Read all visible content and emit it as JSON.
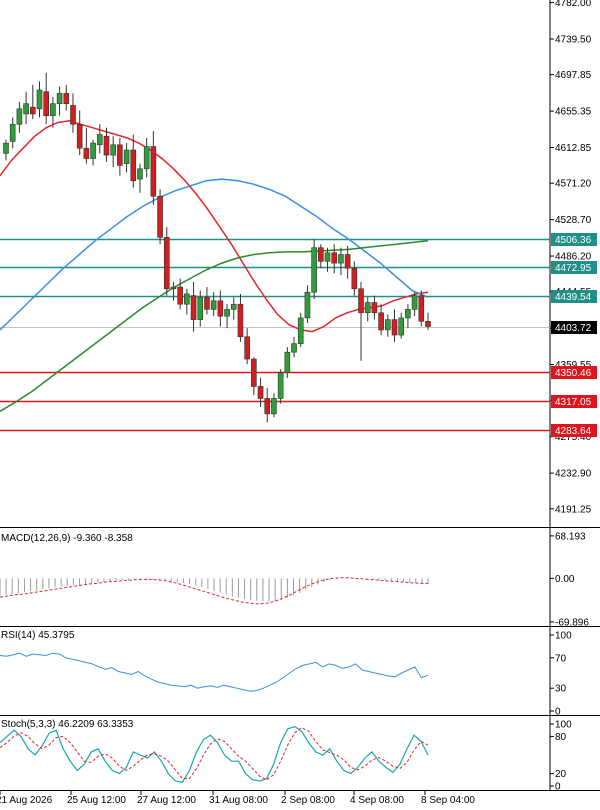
{
  "colors": {
    "bull": "#2e9d3a",
    "bear": "#d01f1f",
    "ma_fast": "#e3262a",
    "ma_mid": "#3b8fe0",
    "ma_slow": "#2a8a2a",
    "level_teal": "#1f8f88",
    "level_red": "#e0141c",
    "price_tag": "#000000"
  },
  "time_labels": [
    "21 Aug 2026",
    "25 Aug 12:00",
    "27 Aug 12:00",
    "31 Aug 08:00",
    "2 Sep 08:00",
    "4 Sep 08:00",
    "8 Sep 04:00"
  ],
  "chart_data": [
    {
      "type": "candlestick",
      "y_ticks": [
        4782.0,
        4739.5,
        4697.85,
        4655.35,
        4612.85,
        4571.2,
        4528.7,
        4486.2,
        4444.55,
        4402.05,
        4359.55,
        4317.9,
        4275.4,
        4232.9,
        4191.25
      ],
      "ylim": [
        4170,
        4785
      ],
      "current_price": 4403.72,
      "levels": [
        {
          "value": 4506.36,
          "label": "4506.36",
          "color": "teal"
        },
        {
          "value": 4472.95,
          "label": "4472.95",
          "color": "teal"
        },
        {
          "value": 4439.54,
          "label": "4439.54",
          "color": "teal"
        },
        {
          "value": 4350.46,
          "label": "4350.46",
          "color": "red"
        },
        {
          "value": 4317.05,
          "label": "4317.05",
          "color": "red"
        },
        {
          "value": 4283.64,
          "label": "4283.64",
          "color": "red"
        }
      ],
      "ohlc": [
        [
          4606,
          4622,
          4598,
          4618
        ],
        [
          4620,
          4648,
          4612,
          4640
        ],
        [
          4640,
          4666,
          4630,
          4658
        ],
        [
          4652,
          4678,
          4640,
          4664
        ],
        [
          4660,
          4686,
          4646,
          4652
        ],
        [
          4658,
          4690,
          4648,
          4680
        ],
        [
          4678,
          4700,
          4640,
          4650
        ],
        [
          4650,
          4672,
          4636,
          4664
        ],
        [
          4664,
          4684,
          4650,
          4676
        ],
        [
          4676,
          4686,
          4656,
          4664
        ],
        [
          4662,
          4676,
          4630,
          4640
        ],
        [
          4640,
          4656,
          4604,
          4612
        ],
        [
          4612,
          4636,
          4594,
          4600
        ],
        [
          4600,
          4622,
          4592,
          4618
        ],
        [
          4616,
          4640,
          4606,
          4628
        ],
        [
          4626,
          4636,
          4596,
          4604
        ],
        [
          4604,
          4626,
          4590,
          4616
        ],
        [
          4616,
          4624,
          4580,
          4592
        ],
        [
          4594,
          4618,
          4584,
          4610
        ],
        [
          4610,
          4628,
          4566,
          4574
        ],
        [
          4576,
          4594,
          4560,
          4588
        ],
        [
          4588,
          4624,
          4578,
          4614
        ],
        [
          4614,
          4632,
          4546,
          4556
        ],
        [
          4556,
          4564,
          4500,
          4508
        ],
        [
          4508,
          4520,
          4440,
          4448
        ],
        [
          4448,
          4456,
          4434,
          4450
        ],
        [
          4450,
          4460,
          4424,
          4430
        ],
        [
          4430,
          4448,
          4418,
          4442
        ],
        [
          4440,
          4456,
          4398,
          4412
        ],
        [
          4412,
          4446,
          4404,
          4438
        ],
        [
          4438,
          4450,
          4418,
          4424
        ],
        [
          4424,
          4444,
          4416,
          4434
        ],
        [
          4434,
          4446,
          4404,
          4416
        ],
        [
          4416,
          4430,
          4402,
          4424
        ],
        [
          4424,
          4438,
          4412,
          4430
        ],
        [
          4430,
          4442,
          4386,
          4392
        ],
        [
          4392,
          4402,
          4360,
          4366
        ],
        [
          4366,
          4368,
          4324,
          4334
        ],
        [
          4334,
          4344,
          4310,
          4320
        ],
        [
          4320,
          4332,
          4292,
          4302
        ],
        [
          4302,
          4326,
          4298,
          4320
        ],
        [
          4320,
          4354,
          4314,
          4350
        ],
        [
          4350,
          4380,
          4344,
          4374
        ],
        [
          4374,
          4392,
          4368,
          4384
        ],
        [
          4384,
          4420,
          4380,
          4414
        ],
        [
          4414,
          4452,
          4408,
          4444
        ],
        [
          4444,
          4506,
          4436,
          4496
        ],
        [
          4496,
          4500,
          4472,
          4480
        ],
        [
          4480,
          4496,
          4468,
          4490
        ],
        [
          4490,
          4500,
          4466,
          4478
        ],
        [
          4478,
          4496,
          4464,
          4488
        ],
        [
          4488,
          4498,
          4460,
          4472
        ],
        [
          4472,
          4480,
          4440,
          4448
        ],
        [
          4448,
          4456,
          4364,
          4420
        ],
        [
          4420,
          4438,
          4410,
          4432
        ],
        [
          4432,
          4440,
          4412,
          4420
        ],
        [
          4420,
          4430,
          4394,
          4400
        ],
        [
          4400,
          4418,
          4392,
          4412
        ],
        [
          4412,
          4424,
          4386,
          4394
        ],
        [
          4394,
          4420,
          4390,
          4414
        ],
        [
          4414,
          4430,
          4402,
          4424
        ],
        [
          4424,
          4444,
          4416,
          4440
        ],
        [
          4440,
          4446,
          4404,
          4410
        ],
        [
          4410,
          4420,
          4400,
          4404
        ]
      ],
      "ma_fast": [
        4580,
        4598,
        4612,
        4626,
        4636,
        4642,
        4644,
        4640,
        4636,
        4632,
        4628,
        4624,
        4618,
        4610,
        4600,
        4588,
        4574,
        4558,
        4540,
        4520,
        4500,
        4478,
        4456,
        4436,
        4418,
        4406,
        4400,
        4398,
        4404,
        4414,
        4420,
        4424,
        4426,
        4428,
        4434,
        4438,
        4442,
        4444
      ],
      "ma_mid": [
        4400,
        4418,
        4436,
        4454,
        4472,
        4488,
        4504,
        4518,
        4532,
        4544,
        4554,
        4562,
        4568,
        4574,
        4576,
        4574,
        4570,
        4564,
        4556,
        4544,
        4532,
        4518,
        4506,
        4492,
        4478,
        4462,
        4446,
        4438
      ],
      "ma_slow": [
        4305,
        4316,
        4328,
        4342,
        4356,
        4370,
        4384,
        4398,
        4412,
        4426,
        4438,
        4450,
        4460,
        4470,
        4478,
        4484,
        4488,
        4490,
        4491,
        4491,
        4492,
        4493,
        4494,
        4496,
        4498,
        4500,
        4502,
        4504
      ]
    },
    {
      "type": "histogram",
      "name": "MACD(12,26,9) -9.360 -8.358",
      "y_ticks": [
        68.193,
        0.0,
        -69.896
      ],
      "y_tick_labels": [
        "68.193",
        "0.00",
        "-69.896"
      ],
      "ylim": [
        -70,
        68
      ],
      "values": [
        -28,
        -26,
        -25,
        -24,
        -22,
        -20,
        -19,
        -17,
        -16,
        -14,
        -13,
        -12,
        -11,
        -10,
        -9,
        -8,
        -7,
        -6,
        -5,
        -4,
        -3,
        -3,
        -2,
        -2,
        -2,
        -2,
        -3,
        -4,
        -5,
        -6,
        -7,
        -9,
        -11,
        -14,
        -17,
        -20,
        -23,
        -26,
        -29,
        -31,
        -33,
        -35,
        -36,
        -37,
        -37,
        -36,
        -34,
        -31,
        -27,
        -23,
        -18,
        -14,
        -10,
        -6,
        -3,
        -1,
        0,
        0,
        -1,
        -1,
        -2,
        -2,
        -3,
        -3,
        -4,
        -4,
        -5,
        -6,
        -8,
        -9,
        -9
      ],
      "signal": [
        -30,
        -28,
        -26,
        -25,
        -23,
        -21,
        -19,
        -17,
        -15,
        -13,
        -11,
        -9,
        -8,
        -6,
        -5,
        -4,
        -3,
        -2,
        -2,
        -2,
        -3,
        -5,
        -8,
        -12,
        -16,
        -20,
        -24,
        -28,
        -32,
        -35,
        -38,
        -40,
        -41,
        -40,
        -37,
        -32,
        -26,
        -19,
        -12,
        -7,
        -3,
        0,
        1,
        1,
        0,
        -1,
        -2,
        -3,
        -4,
        -5,
        -6,
        -7,
        -8,
        -8
      ]
    },
    {
      "type": "line",
      "name": "RSI(14) 45.3795",
      "y_ticks": [
        100,
        70,
        30,
        0
      ],
      "y_tick_labels": [
        "100",
        "70",
        "30",
        "0"
      ],
      "ylim": [
        0,
        100
      ],
      "values": [
        73,
        72,
        74,
        76,
        72,
        75,
        74,
        73,
        76,
        75,
        70,
        68,
        66,
        64,
        62,
        58,
        55,
        57,
        52,
        50,
        48,
        52,
        46,
        42,
        38,
        36,
        34,
        33,
        32,
        34,
        30,
        32,
        33,
        31,
        34,
        32,
        30,
        28,
        26,
        27,
        30,
        34,
        38,
        44,
        50,
        56,
        60,
        62,
        64,
        58,
        62,
        60,
        56,
        58,
        62,
        54,
        52,
        50,
        48,
        46,
        45,
        50,
        54,
        58,
        44,
        47
      ]
    },
    {
      "type": "line",
      "name": "Stoch(5,3,3) 46.2209 63.3353",
      "y_ticks": [
        100,
        80,
        20,
        0
      ],
      "y_tick_labels": [
        "100",
        "80",
        "20",
        "0"
      ],
      "ylim": [
        0,
        100
      ],
      "k": [
        70,
        80,
        90,
        80,
        60,
        50,
        65,
        85,
        90,
        60,
        40,
        25,
        35,
        55,
        60,
        40,
        25,
        20,
        30,
        55,
        50,
        45,
        55,
        40,
        20,
        8,
        6,
        25,
        55,
        75,
        82,
        70,
        50,
        40,
        40,
        20,
        10,
        8,
        12,
        35,
        70,
        92,
        96,
        88,
        70,
        55,
        50,
        60,
        40,
        25,
        20,
        30,
        45,
        55,
        40,
        30,
        22,
        35,
        60,
        82,
        72,
        50
      ],
      "d": [
        62,
        70,
        80,
        86,
        80,
        68,
        60,
        66,
        78,
        80,
        70,
        55,
        40,
        38,
        48,
        52,
        45,
        32,
        25,
        32,
        42,
        50,
        52,
        48,
        40,
        26,
        12,
        12,
        28,
        50,
        68,
        76,
        72,
        60,
        48,
        40,
        28,
        16,
        10,
        18,
        40,
        66,
        86,
        94,
        88,
        72,
        58,
        54,
        50,
        42,
        30,
        26,
        32,
        42,
        46,
        40,
        32,
        28,
        38,
        58,
        72,
        66
      ]
    }
  ]
}
